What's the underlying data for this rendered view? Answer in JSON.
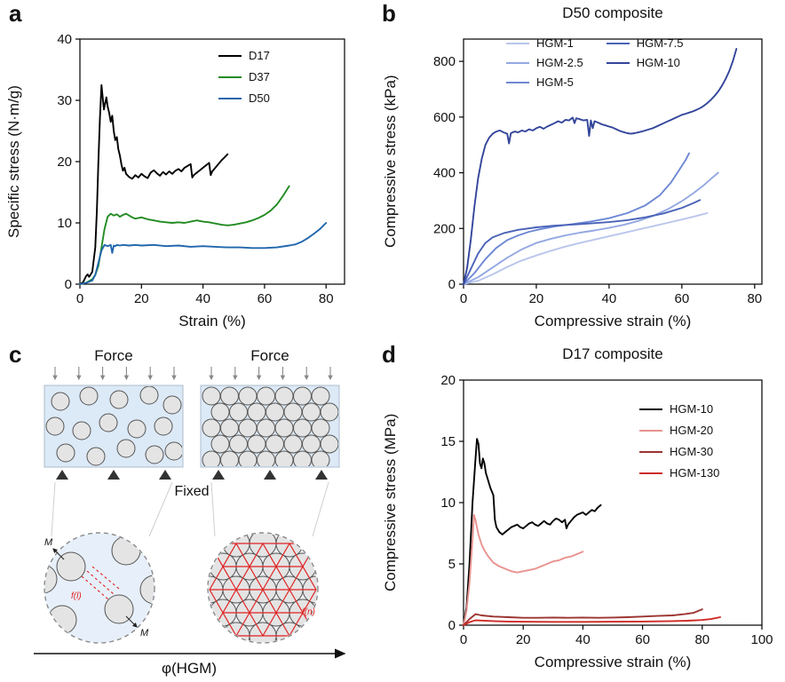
{
  "page": {
    "background": "#ffffff"
  },
  "panels": {
    "a": {
      "label": "a"
    },
    "b": {
      "label": "b"
    },
    "c": {
      "label": "c",
      "force_left": "Force",
      "force_right": "Force",
      "fixed_label": "Fixed",
      "f_l_label": "f(l)",
      "f_n_label": "f(n)",
      "m_label_1": "M",
      "m_label_2": "M",
      "phi_label": "φ(HGM)"
    },
    "d": {
      "label": "d"
    }
  },
  "chart_data": [
    {
      "id": "chart-a",
      "type": "line",
      "title": "",
      "xlabel": "Strain (%)",
      "ylabel": "Specific stress (N·m/g)",
      "xlim": [
        0,
        86
      ],
      "ylim": [
        0,
        40
      ],
      "xticks": [
        0,
        20,
        40,
        60,
        80
      ],
      "yticks": [
        0,
        10,
        20,
        30,
        40
      ],
      "grid": false,
      "legend_position": "top-right",
      "series": [
        {
          "name": "D17",
          "color": "#000000",
          "x": [
            0,
            1,
            2,
            2.5,
            3,
            4,
            5,
            5.5,
            6,
            6.5,
            7,
            7.3,
            7.8,
            8.2,
            8.6,
            9,
            9.5,
            10,
            10.5,
            11,
            11.5,
            12,
            12.5,
            13,
            13.5,
            14,
            14.5,
            15,
            16,
            17,
            18,
            19,
            20,
            21,
            22,
            23,
            24,
            25,
            26,
            27,
            28,
            29,
            30,
            31,
            32,
            33,
            34,
            35,
            36,
            36.5,
            37,
            38,
            39,
            40,
            41,
            42,
            42.5,
            43,
            44,
            45,
            46,
            47,
            48
          ],
          "y": [
            0,
            0.3,
            1.3,
            1.6,
            1.2,
            2,
            6,
            12,
            20,
            27,
            32.5,
            31,
            28.5,
            29.5,
            30.5,
            29,
            28,
            26.5,
            27.5,
            25,
            23.5,
            24,
            22,
            21,
            19.5,
            18.5,
            19,
            18,
            17.5,
            17.2,
            17.8,
            17.4,
            18,
            17.6,
            17.3,
            18.2,
            18.6,
            18.1,
            17.7,
            18.3,
            17.9,
            18.4,
            18,
            18.5,
            18.8,
            18.4,
            19,
            19.3,
            19.6,
            17.4,
            17.8,
            18.2,
            18.6,
            19,
            19.4,
            19.8,
            17.8,
            18.4,
            19,
            19.6,
            20.2,
            20.7,
            21.2
          ]
        },
        {
          "name": "D37",
          "color": "#228B22",
          "x": [
            0,
            2,
            4,
            5,
            6,
            7,
            8,
            9,
            10,
            11,
            12,
            13,
            14,
            15,
            16,
            17,
            18,
            20,
            22,
            24,
            26,
            28,
            30,
            32,
            34,
            36,
            38,
            40,
            42,
            44,
            46,
            48,
            50,
            52,
            54,
            56,
            58,
            60,
            62,
            64,
            66,
            68
          ],
          "y": [
            0,
            0.2,
            0.8,
            1.5,
            3,
            6,
            9,
            11,
            11.5,
            11.2,
            11.4,
            11,
            11.3,
            11.5,
            11.2,
            10.9,
            10.7,
            10.9,
            10.6,
            10.4,
            10.2,
            10.1,
            10,
            10.1,
            10,
            10.2,
            10.4,
            10.2,
            10.1,
            9.9,
            9.7,
            9.6,
            9.7,
            9.9,
            10.1,
            10.4,
            10.8,
            11.3,
            12,
            13,
            14.4,
            16
          ]
        },
        {
          "name": "D50",
          "color": "#2166ac",
          "x": [
            0,
            2,
            4,
            5,
            6,
            7,
            8,
            9,
            10,
            10.5,
            11,
            11.5,
            12,
            13,
            14,
            16,
            18,
            20,
            24,
            28,
            32,
            36,
            40,
            44,
            48,
            52,
            56,
            60,
            64,
            68,
            70,
            72,
            74,
            76,
            78,
            80
          ],
          "y": [
            0,
            0.2,
            0.6,
            1.5,
            3.5,
            5.5,
            6.4,
            6.2,
            6.4,
            5.1,
            6.3,
            6.2,
            6.4,
            6.3,
            6.4,
            6.3,
            6.4,
            6.3,
            6.4,
            6.2,
            6.3,
            6.1,
            6.2,
            6.1,
            6,
            6,
            5.9,
            5.9,
            6,
            6.3,
            6.5,
            6.9,
            7.5,
            8.2,
            9,
            10
          ]
        }
      ]
    },
    {
      "id": "chart-b",
      "type": "line",
      "title": "D50 composite",
      "xlabel": "Compressive strain (%)",
      "ylabel": "Compressive stress (kPa)",
      "xlim": [
        0,
        82
      ],
      "ylim": [
        0,
        880
      ],
      "xticks": [
        0,
        20,
        40,
        60,
        80
      ],
      "yticks": [
        0,
        200,
        400,
        600,
        800
      ],
      "grid": false,
      "legend_position": "top-center-two-columns",
      "series": [
        {
          "name": "HGM-1",
          "color": "#b9c6ec",
          "x": [
            0,
            4,
            8,
            12,
            16,
            20,
            24,
            28,
            32,
            36,
            40,
            44,
            48,
            52,
            56,
            60,
            64,
            67
          ],
          "y": [
            0,
            12,
            35,
            62,
            85,
            103,
            120,
            135,
            148,
            160,
            172,
            184,
            196,
            208,
            220,
            232,
            245,
            255
          ]
        },
        {
          "name": "HGM-2.5",
          "color": "#94a8e2",
          "x": [
            0,
            4,
            8,
            12,
            16,
            20,
            24,
            28,
            32,
            36,
            40,
            44,
            48,
            52,
            56,
            60,
            63,
            66,
            68,
            70
          ],
          "y": [
            0,
            25,
            60,
            95,
            125,
            148,
            163,
            175,
            185,
            193,
            202,
            213,
            227,
            245,
            268,
            298,
            325,
            355,
            378,
            400
          ]
        },
        {
          "name": "HGM-5",
          "color": "#6d88d4",
          "x": [
            0,
            3,
            6,
            9,
            12,
            15,
            18,
            21,
            25,
            30,
            35,
            40,
            45,
            50,
            54,
            57,
            59,
            61,
            62
          ],
          "y": [
            0,
            40,
            90,
            130,
            158,
            175,
            188,
            197,
            207,
            216,
            225,
            237,
            255,
            283,
            320,
            365,
            405,
            445,
            470
          ]
        },
        {
          "name": "HGM-7.5",
          "color": "#4a63b8",
          "x": [
            0,
            2,
            4,
            6,
            8,
            11,
            15,
            20,
            25,
            30,
            35,
            40,
            45,
            50,
            55,
            60,
            63,
            65
          ],
          "y": [
            0,
            55,
            110,
            148,
            168,
            183,
            195,
            204,
            210,
            214,
            218,
            223,
            230,
            240,
            254,
            274,
            290,
            302
          ]
        },
        {
          "name": "HGM-10",
          "color": "#33459b",
          "x": [
            0,
            1,
            2,
            3,
            4,
            5,
            6,
            7,
            8,
            9,
            10,
            11,
            12,
            12.5,
            13,
            14,
            15,
            16,
            17,
            18,
            19,
            20,
            21,
            22,
            23,
            24,
            25,
            26,
            27,
            28,
            29,
            30,
            30.5,
            31,
            32,
            33,
            34,
            34.5,
            35,
            35.5,
            36,
            37,
            38,
            39,
            40,
            41,
            42,
            43,
            44,
            45,
            46,
            47,
            48,
            49,
            50,
            51,
            52,
            53,
            54,
            55,
            56,
            57,
            58,
            59,
            60,
            61,
            62,
            63,
            64,
            65,
            66,
            67,
            68,
            69,
            70,
            71,
            72,
            73,
            74,
            75
          ],
          "y": [
            0,
            60,
            160,
            280,
            380,
            450,
            500,
            525,
            540,
            548,
            552,
            545,
            540,
            505,
            542,
            548,
            545,
            552,
            548,
            556,
            552,
            560,
            565,
            558,
            566,
            572,
            578,
            585,
            580,
            590,
            588,
            598,
            578,
            596,
            592,
            588,
            590,
            532,
            588,
            560,
            585,
            580,
            574,
            570,
            566,
            562,
            556,
            550,
            546,
            542,
            540,
            542,
            545,
            548,
            552,
            556,
            560,
            566,
            572,
            578,
            584,
            590,
            596,
            602,
            608,
            612,
            616,
            620,
            626,
            632,
            640,
            650,
            662,
            676,
            692,
            712,
            736,
            764,
            800,
            845
          ]
        }
      ]
    },
    {
      "id": "chart-d",
      "type": "line",
      "title": "D17 composite",
      "xlabel": "Compressive strain (%)",
      "ylabel": "Compressive stress (MPa)",
      "xlim": [
        0,
        100
      ],
      "ylim": [
        0,
        20
      ],
      "xticks": [
        0,
        20,
        40,
        60,
        80,
        100
      ],
      "yticks": [
        0,
        5,
        10,
        15,
        20
      ],
      "grid": false,
      "legend_position": "top-right",
      "series": [
        {
          "name": "HGM-10",
          "color": "#000000",
          "x": [
            0,
            1,
            2,
            3,
            4,
            4.5,
            5,
            5.5,
            6,
            6.5,
            7,
            7.5,
            8,
            9,
            10,
            10.5,
            11,
            12,
            13,
            14,
            15,
            16,
            17,
            18,
            19,
            20,
            21,
            22,
            23,
            24,
            25,
            26,
            27,
            28,
            29,
            30,
            31,
            32,
            33,
            34,
            34.5,
            35,
            36,
            37,
            38,
            39,
            40,
            41,
            42,
            43,
            44,
            45,
            46
          ],
          "y": [
            0,
            1.5,
            5,
            10,
            13.5,
            15.2,
            14.8,
            13.2,
            12.8,
            13.6,
            13.2,
            12.4,
            12,
            11.2,
            10.6,
            8.6,
            8,
            7.6,
            7.4,
            7.6,
            7.8,
            8,
            8.1,
            8.2,
            8,
            7.9,
            8.1,
            8.3,
            8.4,
            8.2,
            8.1,
            8.3,
            8.5,
            8.3,
            8.2,
            8.5,
            8.7,
            8.6,
            8.4,
            8.6,
            7.9,
            8.2,
            8.5,
            8.8,
            9,
            9.1,
            9.2,
            9,
            9.2,
            9.4,
            9.3,
            9.6,
            9.8
          ]
        },
        {
          "name": "HGM-20",
          "color": "#e8928e",
          "x": [
            0,
            1,
            2,
            3,
            3.5,
            4,
            5,
            6,
            7,
            8,
            9,
            10,
            12,
            14,
            16,
            18,
            20,
            22,
            24,
            26,
            28,
            30,
            32,
            34,
            36,
            38,
            40
          ],
          "y": [
            0,
            1.2,
            3.5,
            7,
            9,
            8.6,
            7.4,
            6.6,
            6.1,
            5.7,
            5.4,
            5.1,
            4.8,
            4.6,
            4.4,
            4.3,
            4.4,
            4.5,
            4.6,
            4.8,
            5,
            5.2,
            5.3,
            5.5,
            5.6,
            5.8,
            6
          ]
        },
        {
          "name": "HGM-30",
          "color": "#9c3431",
          "x": [
            0,
            2,
            4,
            6,
            10,
            15,
            20,
            25,
            30,
            35,
            40,
            45,
            50,
            55,
            60,
            65,
            70,
            74,
            77,
            80
          ],
          "y": [
            0,
            0.5,
            0.9,
            0.8,
            0.7,
            0.65,
            0.6,
            0.6,
            0.62,
            0.6,
            0.62,
            0.6,
            0.62,
            0.65,
            0.7,
            0.75,
            0.8,
            0.9,
            1,
            1.3
          ]
        },
        {
          "name": "HGM-130",
          "color": "#cf2b27",
          "x": [
            0,
            2,
            4,
            6,
            10,
            15,
            20,
            30,
            40,
            50,
            60,
            70,
            75,
            80,
            83,
            86
          ],
          "y": [
            0,
            0.25,
            0.4,
            0.38,
            0.33,
            0.3,
            0.28,
            0.27,
            0.27,
            0.28,
            0.3,
            0.33,
            0.36,
            0.42,
            0.5,
            0.65
          ]
        }
      ]
    }
  ]
}
